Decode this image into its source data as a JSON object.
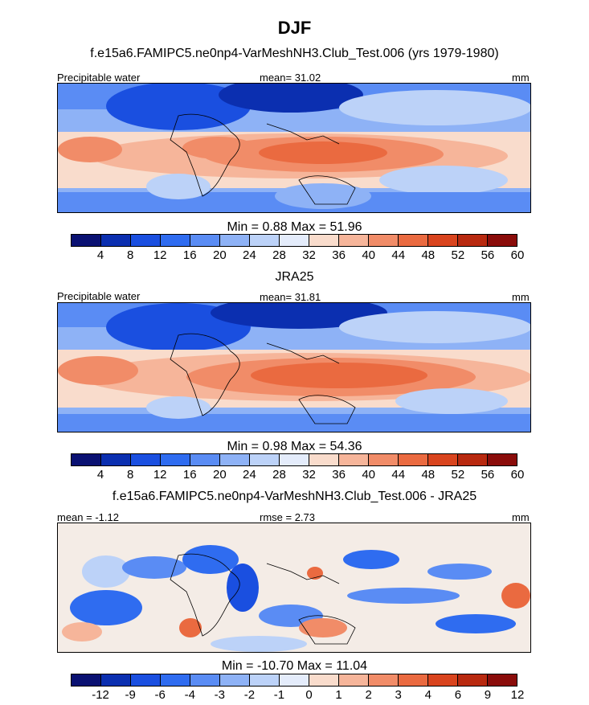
{
  "title": "DJF",
  "units": "mm",
  "panels": [
    {
      "id": "model",
      "title": "f.e15a6.FAMIPC5.ne0np4-VarMeshNH3.Club_Test.006 (yrs 1979-1980)",
      "left_label": "Precipitable water",
      "center_label": "mean=  31.02",
      "right_label": "mm",
      "stats": "Min =   0.88 Max =  51.96",
      "colorbar_labels": [
        "4",
        "8",
        "12",
        "16",
        "20",
        "24",
        "28",
        "32",
        "36",
        "40",
        "44",
        "48",
        "52",
        "56",
        "60"
      ]
    },
    {
      "id": "obs",
      "title": "JRA25",
      "left_label": "Precipitable water",
      "center_label": "mean=  31.81",
      "right_label": "mm",
      "stats": "Min =   0.98 Max =  54.36",
      "colorbar_labels": [
        "4",
        "8",
        "12",
        "16",
        "20",
        "24",
        "28",
        "32",
        "36",
        "40",
        "44",
        "48",
        "52",
        "56",
        "60"
      ]
    },
    {
      "id": "diff",
      "title": "f.e15a6.FAMIPC5.ne0np4-VarMeshNH3.Club_Test.006 - JRA25",
      "left_label": "mean =  -1.12",
      "center_label": "rmse =   2.73",
      "right_label": "mm",
      "stats": "Min = -10.70 Max =  11.04",
      "colorbar_labels": [
        "-12",
        "-9",
        "-6",
        "-4",
        "-3",
        "-2",
        "-1",
        "0",
        "1",
        "2",
        "3",
        "4",
        "6",
        "9",
        "12"
      ]
    }
  ],
  "colorbar_colors": [
    "#0a1172",
    "#0b2fb0",
    "#1a4fe0",
    "#2f6cf0",
    "#5a8cf4",
    "#8eb2f6",
    "#bcd2f8",
    "#e4ecfb",
    "#f9dccc",
    "#f6b59a",
    "#f18c68",
    "#ea6a40",
    "#d9441e",
    "#b8290f",
    "#8a0c0a"
  ]
}
